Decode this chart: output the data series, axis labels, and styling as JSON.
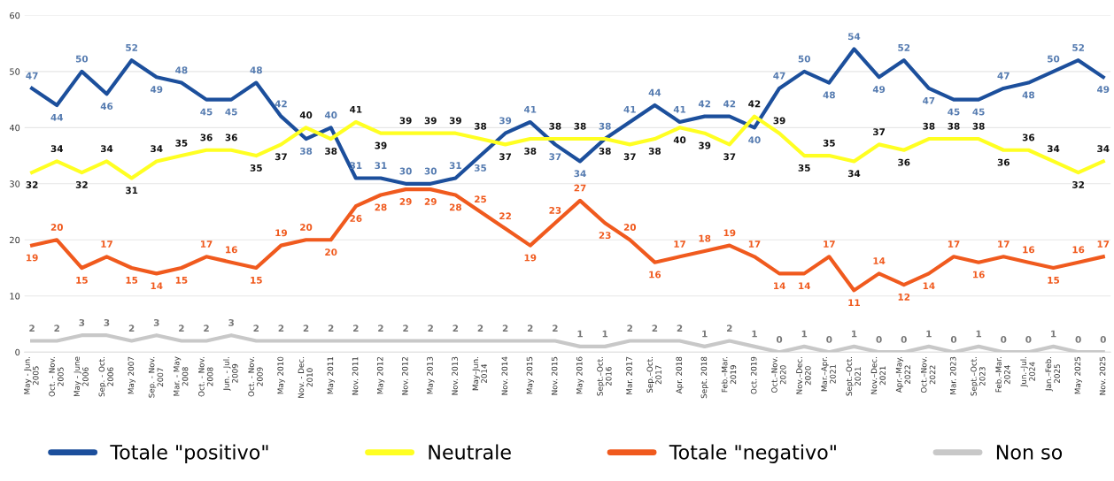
{
  "chart_data": {
    "type": "line",
    "categories": [
      "May - Jun.\n2005",
      "Oct. - Nov.\n2005",
      "May - June\n2006",
      "Sep. - Oct.\n2006",
      "May 2007",
      "Sep. - Nov.\n2007",
      "Mar. - May\n2008",
      "Oct. - Nov.\n2008",
      "Jun. - Jul.\n2009",
      "Oct. - Nov.\n2009",
      "May 2010",
      "Nov. - Dec.\n2010",
      "May 2011",
      "Nov. 2011",
      "May 2012",
      "Nov. 2012",
      "May 2013",
      "Nov. 2013",
      "May–Jun.\n2014",
      "Nov. 2014",
      "May 2015",
      "Nov. 2015",
      "May 2016",
      "Sept.–Oct.\n2016",
      "Mar. 2017",
      "Sep.–Oct.\n2017",
      "Apr. 2018",
      "Sept. 2018",
      "Feb.–Mar.\n2019",
      "Oct. 2019",
      "Oct.–Nov.\n2020",
      "Nov.–Dec.\n2020",
      "Mar.–Apr.\n2021",
      "Sept.–Oct.\n2021",
      "Nov.–Dec.\n2021",
      "Apr.–May.\n2022",
      "Oct.–Nov.\n2022",
      "Mar. 2023",
      "Sept.–Oct.\n2023",
      "Feb.–Mar.\n2024",
      "Jun.–Jul.\n2024",
      "Jan.–Feb.\n2025",
      "May 2025",
      "Nov. 2025"
    ],
    "series": [
      {
        "name": "Totale \"positivo\"",
        "color": "#1c4f9c",
        "values": [
          47,
          44,
          50,
          46,
          52,
          49,
          48,
          45,
          45,
          48,
          42,
          38,
          40,
          31,
          31,
          30,
          30,
          31,
          35,
          39,
          41,
          37,
          34,
          38,
          41,
          44,
          41,
          42,
          42,
          40,
          47,
          50,
          48,
          54,
          49,
          52,
          47,
          45,
          45,
          47,
          48,
          50,
          52,
          49
        ]
      },
      {
        "name": "Neutrale",
        "color": "#ffff22",
        "values": [
          32,
          34,
          32,
          34,
          31,
          34,
          35,
          36,
          36,
          35,
          37,
          40,
          38,
          41,
          39,
          39,
          39,
          39,
          38,
          37,
          38,
          38,
          38,
          38,
          37,
          38,
          40,
          39,
          37,
          42,
          39,
          35,
          35,
          34,
          37,
          36,
          38,
          38,
          38,
          36,
          36,
          34,
          32,
          34
        ]
      },
      {
        "name": "Totale \"negativo\"",
        "color": "#f05a1e",
        "values": [
          19,
          20,
          15,
          17,
          15,
          14,
          15,
          17,
          16,
          15,
          19,
          20,
          20,
          26,
          28,
          29,
          29,
          28,
          25,
          22,
          19,
          23,
          27,
          23,
          20,
          16,
          17,
          18,
          19,
          17,
          14,
          14,
          17,
          11,
          14,
          12,
          14,
          17,
          16,
          17,
          16,
          15,
          16,
          17
        ]
      },
      {
        "name": "Non so",
        "color": "#c8c8c8",
        "values": [
          2,
          2,
          3,
          3,
          2,
          3,
          2,
          2,
          3,
          2,
          2,
          2,
          2,
          2,
          2,
          2,
          2,
          2,
          2,
          2,
          2,
          2,
          1,
          1,
          2,
          2,
          2,
          1,
          2,
          1,
          0,
          1,
          0,
          1,
          0,
          0,
          1,
          0,
          1,
          0,
          0,
          1,
          0,
          0
        ]
      }
    ],
    "ylim": [
      0,
      60
    ],
    "yticks": [
      0,
      10,
      20,
      30,
      40,
      50,
      60
    ],
    "grid": "y",
    "legend": "bottom",
    "data_labels": true,
    "marker": "none",
    "line_style": "solid"
  }
}
